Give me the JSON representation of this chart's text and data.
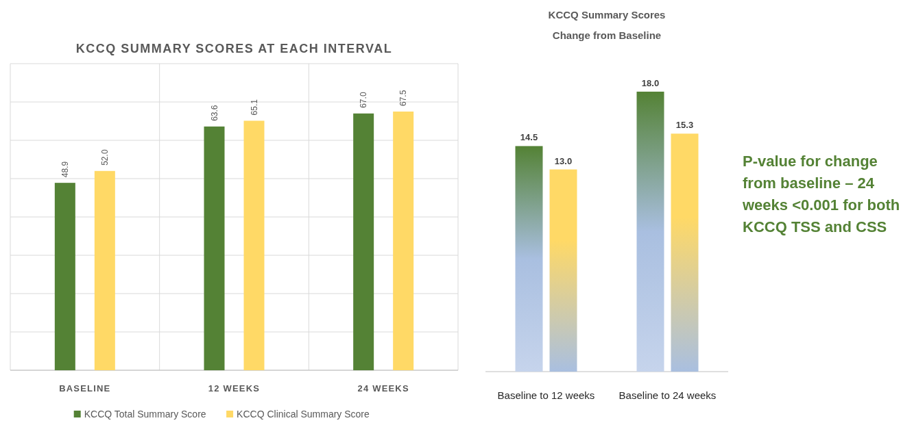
{
  "chart_data": [
    {
      "type": "bar",
      "title": "KCCQ SUMMARY SCORES AT EACH INTERVAL",
      "categories": [
        "BASELINE",
        "12 WEEKS",
        "24 WEEKS"
      ],
      "series": [
        {
          "name": "KCCQ Total Summary Score",
          "color": "#548235",
          "values": [
            48.9,
            63.6,
            67.0
          ],
          "value_labels": [
            "48.9",
            "63.6",
            "67.0"
          ]
        },
        {
          "name": "KCCQ Clinical Summary Score",
          "color": "#ffd966",
          "values": [
            52.0,
            65.1,
            67.5
          ],
          "value_labels": [
            "52.0",
            "65.1",
            "67.5"
          ]
        }
      ],
      "ylim": [
        0,
        80
      ],
      "yticks": [
        {
          "value": 0,
          "label": null
        },
        {
          "value": 10,
          "label": null
        },
        {
          "value": 20,
          "label": null
        },
        {
          "value": 30,
          "label": null
        },
        {
          "value": 40,
          "label": null
        },
        {
          "value": 50,
          "label": null
        },
        {
          "value": 60,
          "label": null
        },
        {
          "value": 70,
          "label": null
        },
        {
          "value": 80,
          "label": null
        }
      ],
      "tick_labels": "x",
      "grid": true,
      "legend": "bottom"
    },
    {
      "type": "bar",
      "title": "KCCQ Summary Scores",
      "subtitle": "Change from Baseline",
      "categories": [
        "Baseline to 12 weeks",
        "Baseline to 24 weeks"
      ],
      "series": [
        {
          "color": "#548235",
          "values": [
            14.5,
            18.0
          ],
          "value_labels": [
            "14.5",
            "18.0"
          ]
        },
        {
          "color": "#ffd966",
          "values": [
            13.0,
            15.3
          ],
          "value_labels": [
            "13.0",
            "15.3"
          ]
        }
      ],
      "tick_labels": "x",
      "annotations": [
        "P-value for change from baseline – 24 weeks <0.001 for both KCCQ TSS and CSS"
      ]
    }
  ]
}
